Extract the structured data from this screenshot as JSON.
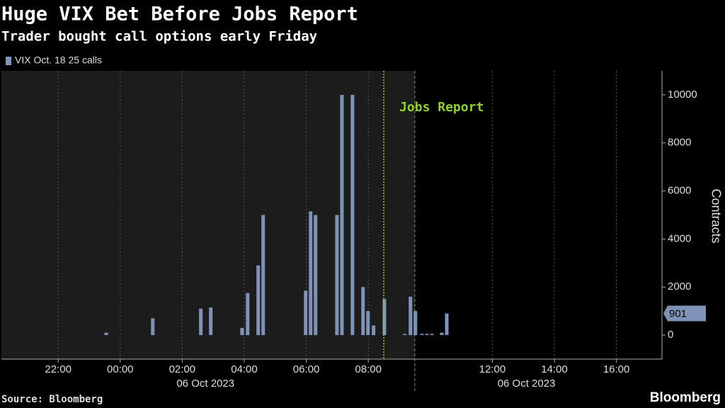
{
  "chart_data": {
    "type": "bar",
    "title": "Huge VIX Bet Before Jobs Report",
    "subtitle": "Trader bought call options early Friday",
    "y_label": "Contracts",
    "source": "Source: Bloomberg",
    "brand": "Bloomberg",
    "annotation": {
      "text": "Jobs Report",
      "x": 8.5,
      "color": "#8fd12a"
    },
    "shade_until": 9.5,
    "x": [
      -0.45,
      1.05,
      2.6,
      2.92,
      3.93,
      4.11,
      4.45,
      4.61,
      5.98,
      6.14,
      6.3,
      6.99,
      7.15,
      7.49,
      7.83,
      7.99,
      8.17,
      8.52,
      9.18,
      9.36,
      9.52,
      9.73,
      9.89,
      10.05,
      10.37,
      10.53
    ],
    "series": [
      {
        "name": "VIX Oct. 18 25 calls",
        "color": "#7f93b8",
        "values": [
          100,
          700,
          1100,
          1150,
          300,
          1750,
          2900,
          5000,
          1850,
          5150,
          5000,
          5000,
          10000,
          10000,
          2000,
          1000,
          400,
          1500,
          50,
          1600,
          1000,
          50,
          50,
          50,
          100,
          901
        ]
      }
    ],
    "xlim": [
      -3.83,
      17.47
    ],
    "ylim": [
      -1000,
      11000
    ],
    "xticks": [
      {
        "value": -2,
        "label": "22:00"
      },
      {
        "value": 0,
        "label": "00:00"
      },
      {
        "value": 2,
        "label": "02:00"
      },
      {
        "value": 4,
        "label": "04:00"
      },
      {
        "value": 6,
        "label": "06:00"
      },
      {
        "value": 8,
        "label": "08:00"
      },
      {
        "value": 12,
        "label": "12:00"
      },
      {
        "value": 14,
        "label": "14:00"
      },
      {
        "value": 16,
        "label": "16:00"
      }
    ],
    "date_labels": [
      {
        "value": 2.75,
        "label": "06 Oct 2023"
      },
      {
        "value": 13.1,
        "label": "06 Oct 2023"
      }
    ],
    "yticks": [
      0,
      2000,
      4000,
      6000,
      8000,
      10000
    ],
    "grid": true
  }
}
